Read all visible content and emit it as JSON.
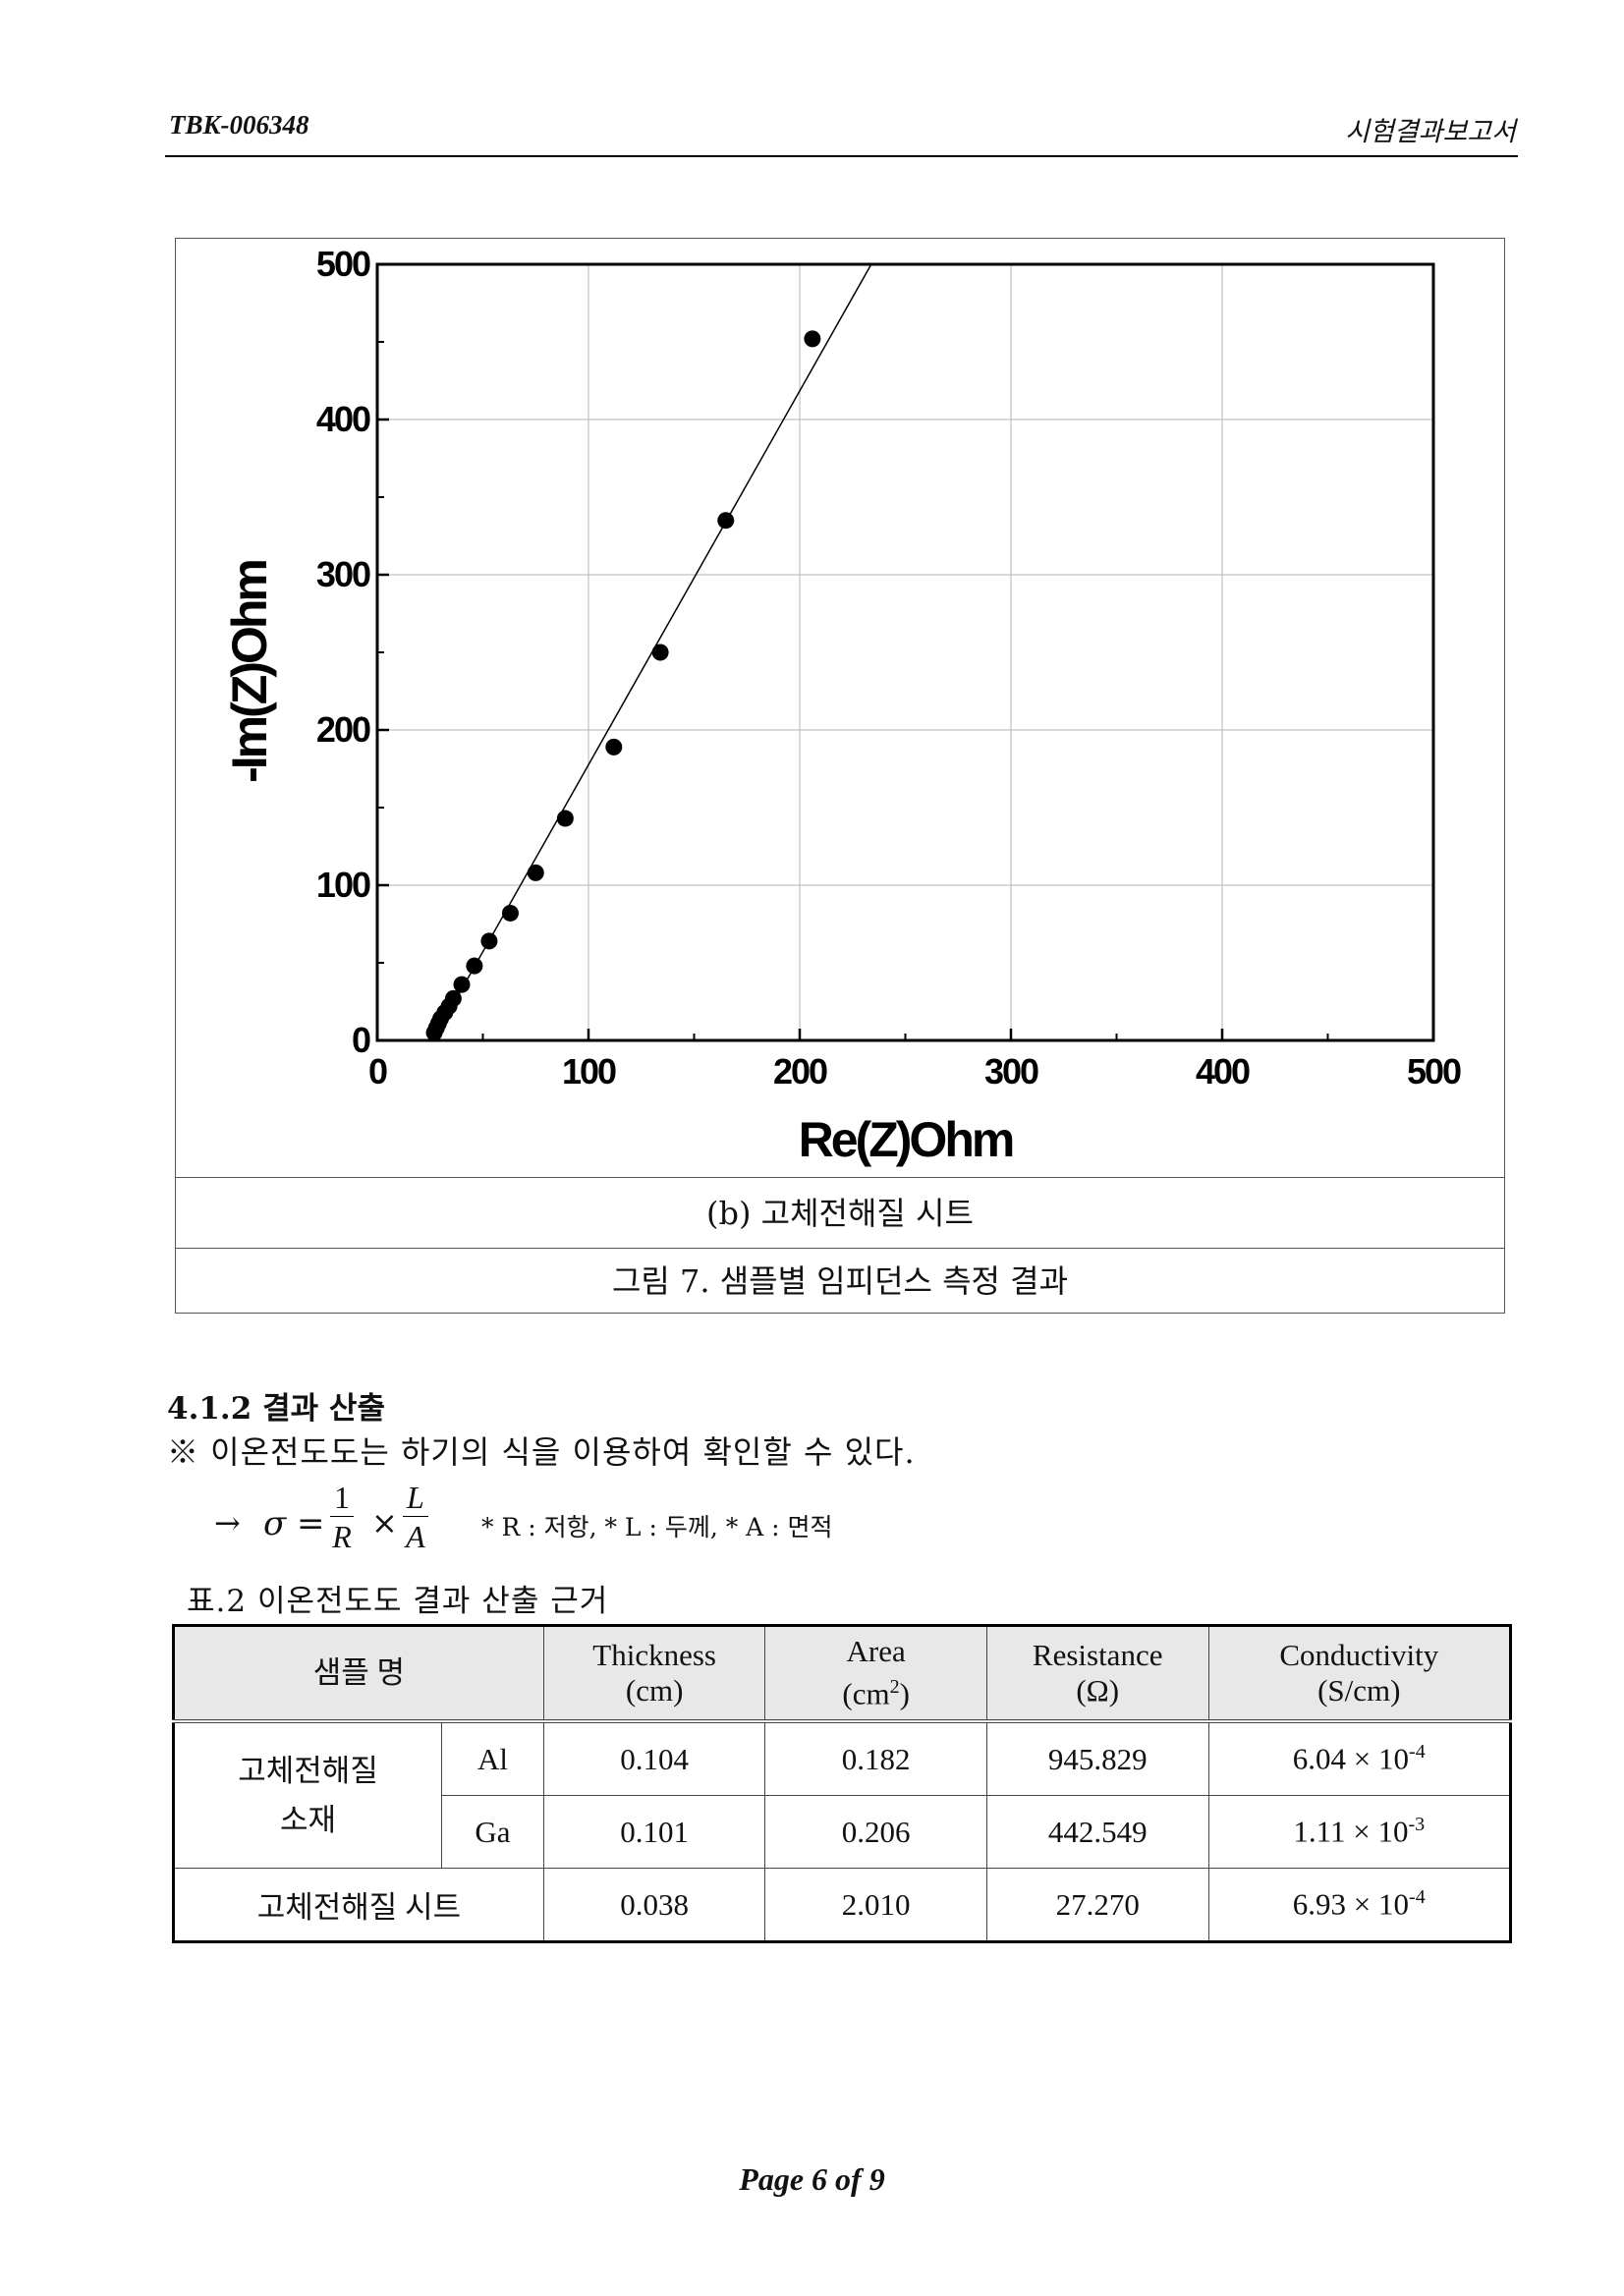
{
  "header": {
    "doc_id": "TBK-006348",
    "doc_type": "시험결과보고서"
  },
  "figure": {
    "subcaption": "(b) 고체전해질 시트",
    "caption": "그림 7. 샘플별 임피던스 측정 결과"
  },
  "chart_data": {
    "type": "scatter",
    "title": "",
    "xlabel": "Re(Z)Ohm",
    "ylabel": "-Im(Z)Ohm",
    "xlim": [
      0,
      500
    ],
    "ylim": [
      0,
      500
    ],
    "x_ticks": [
      "0",
      "100",
      "200",
      "300",
      "400",
      "500"
    ],
    "y_ticks": [
      "0",
      "100",
      "200",
      "300",
      "400",
      "500"
    ],
    "grid": true,
    "series": [
      {
        "marker": "filled-circle",
        "line": true,
        "color": "#000000",
        "x": [
          27,
          28,
          29,
          30,
          32,
          34,
          36,
          40,
          46,
          53,
          63,
          75,
          89,
          112,
          134,
          165,
          206
        ],
        "y": [
          5,
          8,
          11,
          14,
          18,
          22,
          27,
          36,
          48,
          64,
          82,
          108,
          143,
          189,
          250,
          335,
          452
        ]
      }
    ]
  },
  "section": {
    "heading": "4.1.2 결과 산출",
    "note": "※ 이온전도도는 하기의 식을 이용하여 확인할 수 있다.",
    "formula": {
      "arrow": "→",
      "lhs": "σ =",
      "frac1_num": "1",
      "frac1_den": "R",
      "times": "×",
      "frac2_num": "L",
      "frac2_den": "A",
      "legend": "* R : 저항, * L : 두께, * A : 면적"
    }
  },
  "table": {
    "caption": "표.2 이온전도도 결과 산출 근거",
    "headers": {
      "sample": "샘플 명",
      "thickness": "Thickness",
      "thickness_unit": "(cm)",
      "area": "Area",
      "area_unit_pre": "(cm",
      "area_unit_sup": "2",
      "area_unit_post": ")",
      "resistance": "Resistance",
      "resistance_unit": "(Ω)",
      "conductivity": "Conductivity",
      "conductivity_unit": "(S/cm)"
    },
    "group_label_1": "고체전해질",
    "group_label_2": "소재",
    "rows": [
      {
        "sub": "Al",
        "thickness": "0.104",
        "area": "0.182",
        "resistance": "945.829",
        "cond_base": "6.04 × 10",
        "cond_exp": "-4"
      },
      {
        "sub": "Ga",
        "thickness": "0.101",
        "area": "0.206",
        "resistance": "442.549",
        "cond_base": "1.11 × 10",
        "cond_exp": "-3"
      },
      {
        "sample": "고체전해질 시트",
        "thickness": "0.038",
        "area": "2.010",
        "resistance": "27.270",
        "cond_base": "6.93 × 10",
        "cond_exp": "-4"
      }
    ]
  },
  "footer": {
    "page": "Page 6 of 9"
  }
}
